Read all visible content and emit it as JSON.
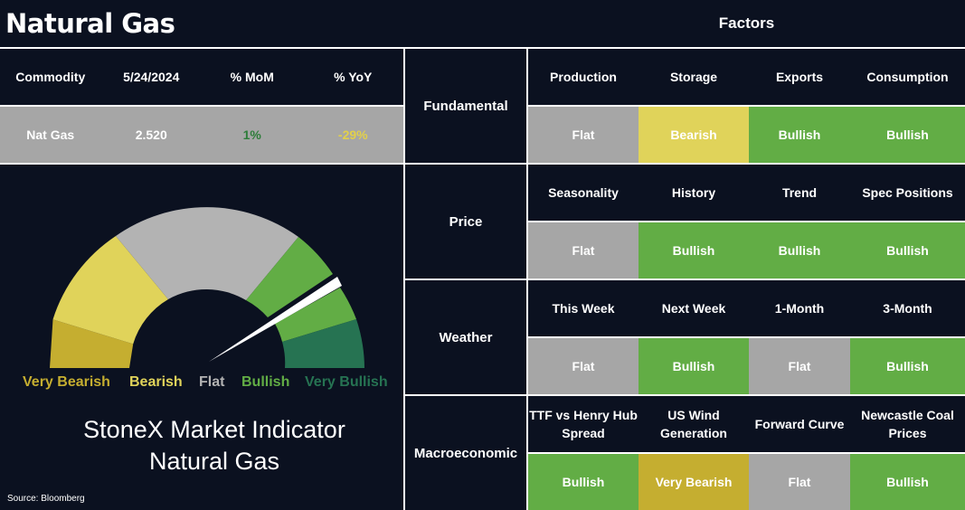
{
  "title": "Natural Gas",
  "factors_title": "Factors",
  "commodity_table": {
    "headers": [
      "Commodity",
      "5/24/2024",
      "% MoM",
      "% YoY"
    ],
    "row": {
      "commodity": "Nat Gas",
      "price": "2.520",
      "mom": "1%",
      "yoy": "-29%"
    }
  },
  "gauge": {
    "labels": [
      "Very Bearish",
      "Bearish",
      "Flat",
      "Bullish",
      "Very Bullish"
    ],
    "indicator_title_line1": "StoneX Market Indicator",
    "indicator_title_line2": "Natural Gas",
    "colors": {
      "very_bearish": "#c5ae30",
      "bearish": "#e0d35a",
      "flat": "#b3b3b3",
      "bullish": "#62ad45",
      "very_bullish": "#267352",
      "needle": "#ffffff"
    }
  },
  "source": "Source: Bloomberg",
  "categories": [
    {
      "name": "Fundamental",
      "factors": [
        {
          "label": "Production",
          "value": "Flat"
        },
        {
          "label": "Storage",
          "value": "Bearish"
        },
        {
          "label": "Exports",
          "value": "Bullish"
        },
        {
          "label": "Consumption",
          "value": "Bullish"
        }
      ]
    },
    {
      "name": "Price",
      "factors": [
        {
          "label": "Seasonality",
          "value": "Flat"
        },
        {
          "label": "History",
          "value": "Bullish"
        },
        {
          "label": "Trend",
          "value": "Bullish"
        },
        {
          "label": "Spec Positions",
          "value": "Bullish"
        }
      ]
    },
    {
      "name": "Weather",
      "factors": [
        {
          "label": "This Week",
          "value": "Flat"
        },
        {
          "label": "Next Week",
          "value": "Bullish"
        },
        {
          "label": "1-Month",
          "value": "Flat"
        },
        {
          "label": "3-Month",
          "value": "Bullish"
        }
      ]
    },
    {
      "name": "Macroeconomic",
      "factors": [
        {
          "label": "TTF vs Henry Hub Spread",
          "value": "Bullish"
        },
        {
          "label": "US Wind Generation",
          "value": "Very Bearish"
        },
        {
          "label": "Forward Curve",
          "value": "Flat"
        },
        {
          "label": "Newcastle Coal Prices",
          "value": "Bullish"
        }
      ]
    }
  ]
}
